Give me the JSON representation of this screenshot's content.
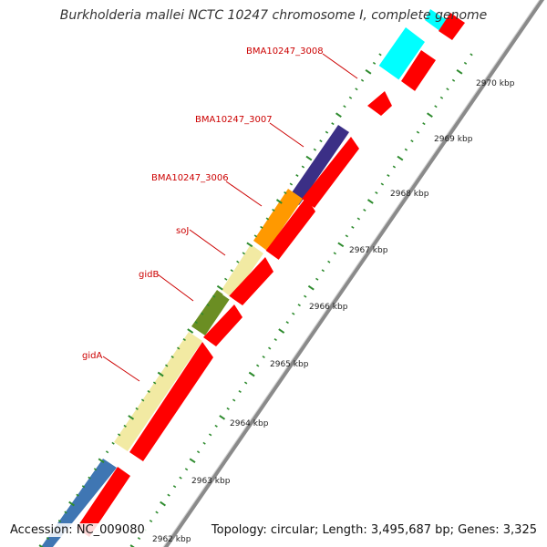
{
  "title": "Burkholderia mallei NCTC 10247 chromosome I, complete genome",
  "footer": {
    "accession": "Accession: NC_009080",
    "topology": "Topology: circular; Length: 3,495,687 bp; Genes: 3,325"
  },
  "scale_labels": [
    "2962 kbp",
    "2963 kbp",
    "2964 kbp",
    "2965 kbp",
    "2966 kbp",
    "2967 kbp",
    "2968 kbp",
    "2969 kbp",
    "2970 kbp"
  ],
  "gene_labels": [
    "BMA10247_3008",
    "BMA10247_3007",
    "BMA10247_3006",
    "soJ",
    "gidB",
    "gidA"
  ],
  "colors": {
    "label_red": "#cc0000",
    "cds": "#ff0000",
    "backbone": "#8a8a8a",
    "tick": "#2e8b2e",
    "cyan": "#00ffff",
    "navy": "#3b2f86",
    "orange": "#ff9900",
    "pale_yellow": "#f2eaa3",
    "olive": "#6b8e23",
    "steel_blue": "#3f76b3"
  }
}
